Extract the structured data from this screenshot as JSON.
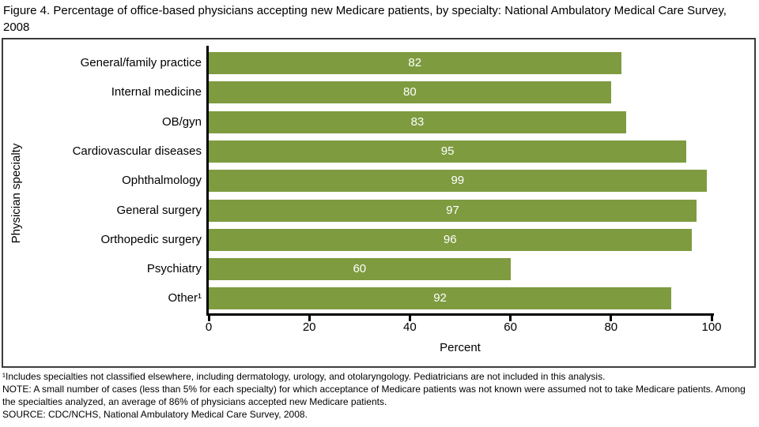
{
  "title": "Figure 4. Percentage of office-based physicians accepting new Medicare patients, by specialty: National Ambulatory Medical Care Survey, 2008",
  "chart_data": {
    "type": "bar",
    "orientation": "horizontal",
    "title": "Figure 4. Percentage of office-based physicians accepting new Medicare patients, by specialty: National Ambulatory Medical Care Survey, 2008",
    "categories": [
      "General/family practice",
      "Internal medicine",
      "OB/gyn",
      "Cardiovascular diseases",
      "Ophthalmology",
      "General surgery",
      "Orthopedic surgery",
      "Psychiatry",
      "Other¹"
    ],
    "values": [
      82,
      80,
      83,
      95,
      99,
      97,
      96,
      60,
      92
    ],
    "xlabel": "Percent",
    "ylabel": "Physician specialty",
    "xlim": [
      0,
      100
    ],
    "xticks": [
      0,
      20,
      40,
      60,
      80,
      100
    ],
    "grid": false,
    "legend": false,
    "bar_color": "#7e9b3f",
    "value_label_color": "#ffffff",
    "axis_color": "#000000"
  },
  "footnotes": {
    "lines": [
      "¹Includes specialties not classified elsewhere, including dermatology, urology, and otolaryngology. Pediatricians are not included in this analysis.",
      "NOTE: A small number of cases (less than 5% for each specialty) for which acceptance of Medicare patients was not known were assumed not to take Medicare patients. Among the specialties analyzed, an average of 86% of physicians accepted new Medicare patients.",
      "SOURCE: CDC/NCHS, National Ambulatory Medical Care Survey, 2008."
    ]
  }
}
